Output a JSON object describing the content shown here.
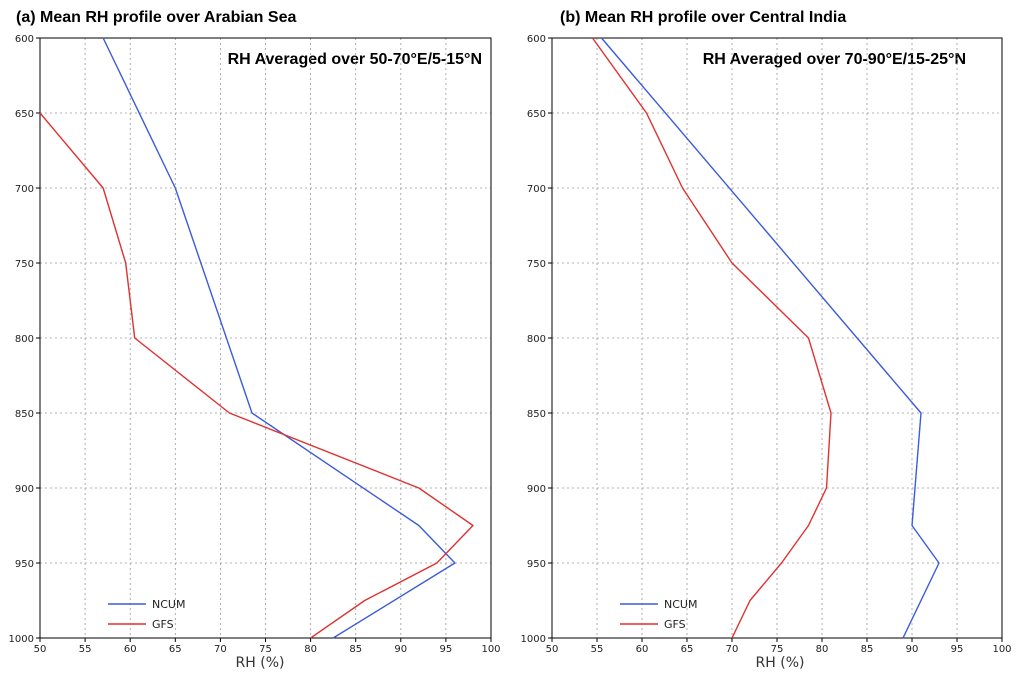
{
  "chart_data": [
    {
      "type": "line",
      "title": "(a) Mean RH profile over Arabian Sea",
      "annotation": "RH Averaged over 50-70°E/5-15°N",
      "xlabel": "RH (%)",
      "ylabel": "",
      "xlim": [
        50,
        100
      ],
      "ylim": [
        1000,
        600
      ],
      "x_ticks": [
        "50",
        "55",
        "60",
        "65",
        "70",
        "75",
        "80",
        "85",
        "90",
        "95",
        "100"
      ],
      "y_ticks": [
        "600",
        "650",
        "700",
        "750",
        "800",
        "850",
        "900",
        "950",
        "1000"
      ],
      "grid": true,
      "legend_placement": "bottom-left",
      "series": [
        {
          "name": "NCUM",
          "color": "#3b5bdb",
          "points": [
            [
              57,
              600
            ],
            [
              65,
              700
            ],
            [
              73.5,
              850
            ],
            [
              92,
              925
            ],
            [
              96,
              950
            ],
            [
              82.5,
              1000
            ]
          ]
        },
        {
          "name": "GFS",
          "color": "#e03131",
          "points": [
            [
              50,
              650
            ],
            [
              57,
              700
            ],
            [
              59.5,
              750
            ],
            [
              60.5,
              800
            ],
            [
              71,
              850
            ],
            [
              92,
              900
            ],
            [
              98,
              925
            ],
            [
              94,
              950
            ],
            [
              86,
              975
            ],
            [
              80,
              1000
            ]
          ]
        }
      ]
    },
    {
      "type": "line",
      "title": "(b) Mean RH profile over Central India",
      "annotation": "RH Averaged over 70-90°E/15-25°N",
      "xlabel": "RH (%)",
      "ylabel": "",
      "xlim": [
        50,
        100
      ],
      "ylim": [
        1000,
        600
      ],
      "x_ticks": [
        "50",
        "55",
        "60",
        "65",
        "70",
        "75",
        "80",
        "85",
        "90",
        "95",
        "100"
      ],
      "y_ticks": [
        "600",
        "650",
        "700",
        "750",
        "800",
        "850",
        "900",
        "950",
        "1000"
      ],
      "grid": true,
      "legend_placement": "bottom-left",
      "series": [
        {
          "name": "NCUM",
          "color": "#3b5bdb",
          "points": [
            [
              55.5,
              600
            ],
            [
              91,
              850
            ],
            [
              90,
              925
            ],
            [
              93,
              950
            ],
            [
              89,
              1000
            ]
          ]
        },
        {
          "name": "GFS",
          "color": "#e03131",
          "points": [
            [
              54.5,
              600
            ],
            [
              60.5,
              650
            ],
            [
              64.5,
              700
            ],
            [
              70,
              750
            ],
            [
              78.5,
              800
            ],
            [
              81,
              850
            ],
            [
              80.5,
              900
            ],
            [
              78.5,
              925
            ],
            [
              75.5,
              950
            ],
            [
              72,
              975
            ],
            [
              70,
              1000
            ]
          ]
        }
      ]
    }
  ]
}
